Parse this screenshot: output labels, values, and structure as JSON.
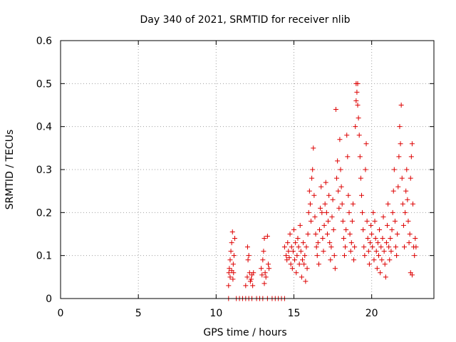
{
  "chart_data": {
    "type": "scatter",
    "title": "Day 340 of 2021, SRMTID for receiver nlib",
    "xlabel": "GPS time / hours",
    "ylabel": "SRMTID / TECUs",
    "xlim": [
      0,
      24
    ],
    "ylim": [
      0,
      0.6
    ],
    "xticks": [
      0,
      5,
      10,
      15,
      20
    ],
    "yticks": [
      0,
      0.1,
      0.2,
      0.3,
      0.4,
      0.5,
      0.6
    ],
    "xtick_labels": [
      "0",
      "5",
      "10",
      "15",
      "20"
    ],
    "ytick_labels": [
      "0",
      "0.1",
      "0.2",
      "0.3",
      "0.4",
      "0.5",
      "0.6"
    ],
    "grid": true,
    "marker": "+",
    "color": "#dd0000",
    "series": [
      {
        "name": "SRMTID",
        "points": [
          [
            10.8,
            0.03
          ],
          [
            10.85,
            0.07
          ],
          [
            10.9,
            0.05
          ],
          [
            10.95,
            0.11
          ],
          [
            11.0,
            0.13
          ],
          [
            11.05,
            0.155
          ],
          [
            11.1,
            0.08
          ],
          [
            11.12,
            0.06
          ],
          [
            11.15,
            0.1
          ],
          [
            11.2,
            0.14
          ],
          [
            10.9,
            0.09
          ],
          [
            11.0,
            0.065
          ],
          [
            11.08,
            0.045
          ],
          [
            10.82,
            0.06
          ],
          [
            11.9,
            0.03
          ],
          [
            12.0,
            0.05
          ],
          [
            12.05,
            0.09
          ],
          [
            12.1,
            0.1
          ],
          [
            12.15,
            0.06
          ],
          [
            12.2,
            0.04
          ],
          [
            12.3,
            0.055
          ],
          [
            12.35,
            0.03
          ],
          [
            12.4,
            0.06
          ],
          [
            12.02,
            0.12
          ],
          [
            12.25,
            0.045
          ],
          [
            12.9,
            0.07
          ],
          [
            13.0,
            0.09
          ],
          [
            13.05,
            0.11
          ],
          [
            13.1,
            0.14
          ],
          [
            13.15,
            0.06
          ],
          [
            13.2,
            0.05
          ],
          [
            13.3,
            0.145
          ],
          [
            13.35,
            0.08
          ],
          [
            13.4,
            0.07
          ],
          [
            13.1,
            0.035
          ],
          [
            12.95,
            0.055
          ],
          [
            14.4,
            0.12
          ],
          [
            14.5,
            0.1
          ],
          [
            14.55,
            0.09
          ],
          [
            14.6,
            0.13
          ],
          [
            14.65,
            0.11
          ],
          [
            14.7,
            0.095
          ],
          [
            14.75,
            0.15
          ],
          [
            14.8,
            0.08
          ],
          [
            14.85,
            0.12
          ],
          [
            14.9,
            0.07
          ],
          [
            14.95,
            0.11
          ],
          [
            15.0,
            0.16
          ],
          [
            15.05,
            0.09
          ],
          [
            15.1,
            0.13
          ],
          [
            15.15,
            0.06
          ],
          [
            15.2,
            0.1
          ],
          [
            15.25,
            0.14
          ],
          [
            15.3,
            0.12
          ],
          [
            15.35,
            0.08
          ],
          [
            15.4,
            0.17
          ],
          [
            15.45,
            0.11
          ],
          [
            15.5,
            0.05
          ],
          [
            15.55,
            0.09
          ],
          [
            15.6,
            0.13
          ],
          [
            15.65,
            0.08
          ],
          [
            15.7,
            0.1
          ],
          [
            15.75,
            0.04
          ],
          [
            15.8,
            0.12
          ],
          [
            15.85,
            0.07
          ],
          [
            15.9,
            0.15
          ],
          [
            15.95,
            0.2
          ],
          [
            16.0,
            0.25
          ],
          [
            16.05,
            0.22
          ],
          [
            16.1,
            0.18
          ],
          [
            16.15,
            0.28
          ],
          [
            16.2,
            0.3
          ],
          [
            16.25,
            0.35
          ],
          [
            16.3,
            0.24
          ],
          [
            16.35,
            0.19
          ],
          [
            16.4,
            0.15
          ],
          [
            16.45,
            0.12
          ],
          [
            16.5,
            0.1
          ],
          [
            16.55,
            0.13
          ],
          [
            16.6,
            0.08
          ],
          [
            16.65,
            0.16
          ],
          [
            16.7,
            0.21
          ],
          [
            16.75,
            0.26
          ],
          [
            16.8,
            0.2
          ],
          [
            16.85,
            0.14
          ],
          [
            16.9,
            0.11
          ],
          [
            16.95,
            0.17
          ],
          [
            17.0,
            0.22
          ],
          [
            17.05,
            0.27
          ],
          [
            17.1,
            0.2
          ],
          [
            17.15,
            0.15
          ],
          [
            17.2,
            0.18
          ],
          [
            17.25,
            0.24
          ],
          [
            17.3,
            0.13
          ],
          [
            17.35,
            0.09
          ],
          [
            17.4,
            0.12
          ],
          [
            17.45,
            0.19
          ],
          [
            17.5,
            0.23
          ],
          [
            17.55,
            0.16
          ],
          [
            17.6,
            0.1
          ],
          [
            17.65,
            0.07
          ],
          [
            17.7,
            0.44
          ],
          [
            17.75,
            0.28
          ],
          [
            17.8,
            0.32
          ],
          [
            17.85,
            0.25
          ],
          [
            17.9,
            0.21
          ],
          [
            17.95,
            0.37
          ],
          [
            18.0,
            0.3
          ],
          [
            18.05,
            0.26
          ],
          [
            18.1,
            0.22
          ],
          [
            18.15,
            0.18
          ],
          [
            18.2,
            0.14
          ],
          [
            18.25,
            0.1
          ],
          [
            18.3,
            0.12
          ],
          [
            18.35,
            0.16
          ],
          [
            18.4,
            0.38
          ],
          [
            18.45,
            0.33
          ],
          [
            18.5,
            0.24
          ],
          [
            18.55,
            0.2
          ],
          [
            18.6,
            0.15
          ],
          [
            18.65,
            0.11
          ],
          [
            18.7,
            0.13
          ],
          [
            18.75,
            0.18
          ],
          [
            18.8,
            0.22
          ],
          [
            18.85,
            0.09
          ],
          [
            18.9,
            0.12
          ],
          [
            18.95,
            0.4
          ],
          [
            19.0,
            0.5
          ],
          [
            19.05,
            0.48
          ],
          [
            19.1,
            0.45
          ],
          [
            19.15,
            0.42
          ],
          [
            19.2,
            0.38
          ],
          [
            19.25,
            0.33
          ],
          [
            19.3,
            0.28
          ],
          [
            19.35,
            0.24
          ],
          [
            19.4,
            0.2
          ],
          [
            19.45,
            0.16
          ],
          [
            19.5,
            0.12
          ],
          [
            19.55,
            0.1
          ],
          [
            19.6,
            0.3
          ],
          [
            19.65,
            0.36
          ],
          [
            19.7,
            0.18
          ],
          [
            19.75,
            0.14
          ],
          [
            19.8,
            0.11
          ],
          [
            19.85,
            0.08
          ],
          [
            19.9,
            0.13
          ],
          [
            19.95,
            0.17
          ],
          [
            19.1,
            0.5
          ],
          [
            19.0,
            0.46
          ],
          [
            20.0,
            0.15
          ],
          [
            20.05,
            0.12
          ],
          [
            20.1,
            0.2
          ],
          [
            20.15,
            0.09
          ],
          [
            20.2,
            0.18
          ],
          [
            20.25,
            0.14
          ],
          [
            20.3,
            0.11
          ],
          [
            20.35,
            0.07
          ],
          [
            20.4,
            0.13
          ],
          [
            20.45,
            0.1
          ],
          [
            20.5,
            0.16
          ],
          [
            20.55,
            0.06
          ],
          [
            20.6,
            0.12
          ],
          [
            20.65,
            0.09
          ],
          [
            20.7,
            0.14
          ],
          [
            20.75,
            0.19
          ],
          [
            20.8,
            0.11
          ],
          [
            20.85,
            0.08
          ],
          [
            20.9,
            0.05
          ],
          [
            20.95,
            0.13
          ],
          [
            21.0,
            0.17
          ],
          [
            21.05,
            0.22
          ],
          [
            21.1,
            0.12
          ],
          [
            21.15,
            0.09
          ],
          [
            21.2,
            0.14
          ],
          [
            21.25,
            0.11
          ],
          [
            21.3,
            0.16
          ],
          [
            21.35,
            0.2
          ],
          [
            21.4,
            0.25
          ],
          [
            21.45,
            0.3
          ],
          [
            21.5,
            0.18
          ],
          [
            21.55,
            0.12
          ],
          [
            21.6,
            0.1
          ],
          [
            21.65,
            0.15
          ],
          [
            21.7,
            0.26
          ],
          [
            21.75,
            0.33
          ],
          [
            21.8,
            0.4
          ],
          [
            21.85,
            0.36
          ],
          [
            21.9,
            0.45
          ],
          [
            21.95,
            0.28
          ],
          [
            22.0,
            0.22
          ],
          [
            22.05,
            0.17
          ],
          [
            22.1,
            0.12
          ],
          [
            22.15,
            0.2
          ],
          [
            22.2,
            0.25
          ],
          [
            22.25,
            0.3
          ],
          [
            22.3,
            0.23
          ],
          [
            22.35,
            0.18
          ],
          [
            22.4,
            0.13
          ],
          [
            22.45,
            0.15
          ],
          [
            22.5,
            0.28
          ],
          [
            22.55,
            0.33
          ],
          [
            22.6,
            0.36
          ],
          [
            22.65,
            0.22
          ],
          [
            22.7,
            0.12
          ],
          [
            22.75,
            0.1
          ],
          [
            22.8,
            0.14
          ],
          [
            22.85,
            0.12
          ],
          [
            22.5,
            0.06
          ],
          [
            22.6,
            0.055
          ],
          [
            10.8,
            0
          ],
          [
            11.3,
            0
          ],
          [
            11.5,
            0
          ],
          [
            11.7,
            0
          ],
          [
            11.9,
            0
          ],
          [
            12.1,
            0
          ],
          [
            12.3,
            0
          ],
          [
            12.6,
            0
          ],
          [
            12.8,
            0
          ],
          [
            13.0,
            0
          ],
          [
            13.3,
            0
          ],
          [
            13.6,
            0
          ],
          [
            13.8,
            0
          ],
          [
            14.0,
            0
          ],
          [
            14.2,
            0
          ],
          [
            14.4,
            0
          ]
        ]
      }
    ]
  }
}
